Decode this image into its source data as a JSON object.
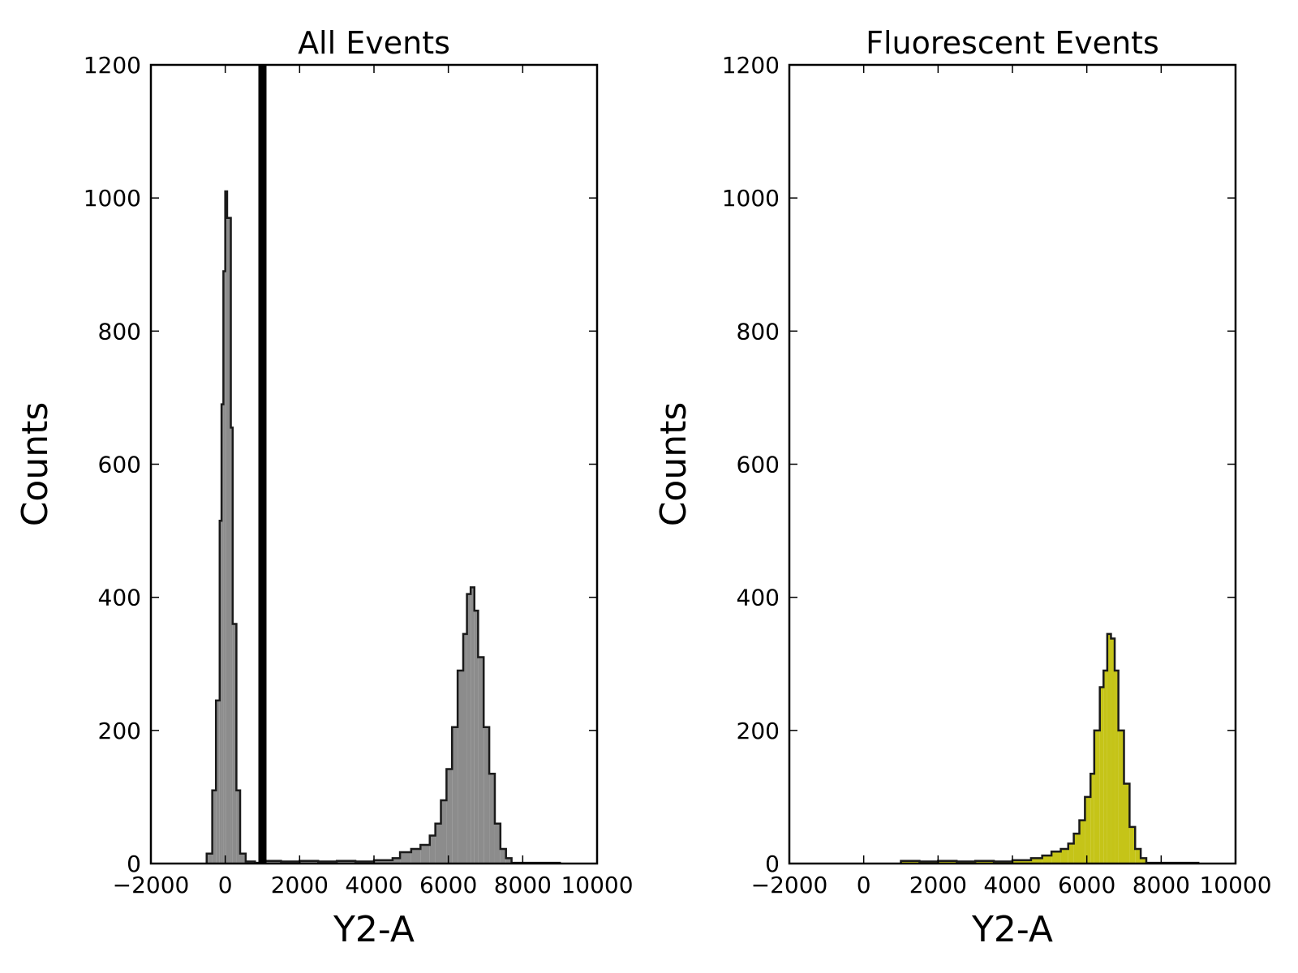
{
  "chart_data": [
    {
      "type": "histogram",
      "title": "All Events",
      "xlabel": "Y2-A",
      "ylabel": "Counts",
      "xlim": [
        -2000,
        10000
      ],
      "ylim": [
        0,
        1200
      ],
      "xticks": [
        -2000,
        0,
        2000,
        4000,
        6000,
        8000,
        10000
      ],
      "xtick_labels": [
        "−2000",
        "0",
        "2000",
        "4000",
        "6000",
        "8000",
        "10000"
      ],
      "yticks": [
        0,
        200,
        400,
        600,
        800,
        1000,
        1200
      ],
      "ytick_labels": [
        "0",
        "200",
        "400",
        "600",
        "800",
        "1000",
        "1200"
      ],
      "fill_color": "#8c8c8c",
      "edge_color": "#1a1a1a",
      "threshold_line": {
        "x": 1000,
        "color": "#000000"
      },
      "bins": [
        [
          -500,
          -350,
          15
        ],
        [
          -350,
          -250,
          110
        ],
        [
          -250,
          -150,
          245
        ],
        [
          -150,
          -100,
          515
        ],
        [
          -100,
          -50,
          690
        ],
        [
          -50,
          0,
          890
        ],
        [
          0,
          50,
          1010
        ],
        [
          50,
          150,
          970
        ],
        [
          150,
          200,
          655
        ],
        [
          200,
          300,
          360
        ],
        [
          300,
          400,
          110
        ],
        [
          400,
          550,
          15
        ],
        [
          550,
          800,
          3
        ],
        [
          800,
          1000,
          1
        ],
        [
          1000,
          1500,
          4
        ],
        [
          1500,
          2000,
          3
        ],
        [
          2000,
          2500,
          4
        ],
        [
          2500,
          3000,
          3
        ],
        [
          3000,
          3500,
          4
        ],
        [
          3500,
          4000,
          3
        ],
        [
          4000,
          4500,
          5
        ],
        [
          4500,
          4700,
          8
        ],
        [
          4700,
          5000,
          17
        ],
        [
          5000,
          5250,
          22
        ],
        [
          5250,
          5500,
          28
        ],
        [
          5500,
          5650,
          42
        ],
        [
          5650,
          5800,
          60
        ],
        [
          5800,
          5950,
          95
        ],
        [
          5950,
          6100,
          142
        ],
        [
          6100,
          6250,
          205
        ],
        [
          6250,
          6400,
          290
        ],
        [
          6400,
          6500,
          345
        ],
        [
          6500,
          6600,
          405
        ],
        [
          6600,
          6700,
          415
        ],
        [
          6700,
          6800,
          380
        ],
        [
          6800,
          6950,
          310
        ],
        [
          6950,
          7100,
          205
        ],
        [
          7100,
          7250,
          135
        ],
        [
          7250,
          7400,
          60
        ],
        [
          7400,
          7550,
          22
        ],
        [
          7550,
          7700,
          8
        ],
        [
          7700,
          9000,
          1
        ]
      ]
    },
    {
      "type": "histogram",
      "title": "Fluorescent Events",
      "xlabel": "Y2-A",
      "ylabel": "Counts",
      "xlim": [
        -2000,
        10000
      ],
      "ylim": [
        0,
        1200
      ],
      "xticks": [
        -2000,
        0,
        2000,
        4000,
        6000,
        8000,
        10000
      ],
      "xtick_labels": [
        "−2000",
        "0",
        "2000",
        "4000",
        "6000",
        "8000",
        "10000"
      ],
      "yticks": [
        0,
        200,
        400,
        600,
        800,
        1000,
        1200
      ],
      "ytick_labels": [
        "0",
        "200",
        "400",
        "600",
        "800",
        "1000",
        "1200"
      ],
      "fill_color": "#c5c418",
      "edge_color": "#1a1a1a",
      "bins": [
        [
          1000,
          1500,
          4
        ],
        [
          1500,
          2000,
          3
        ],
        [
          2000,
          2500,
          4
        ],
        [
          2500,
          3000,
          3
        ],
        [
          3000,
          3500,
          4
        ],
        [
          3500,
          4000,
          3
        ],
        [
          4000,
          4500,
          5
        ],
        [
          4500,
          4800,
          8
        ],
        [
          4800,
          5050,
          12
        ],
        [
          5050,
          5300,
          18
        ],
        [
          5300,
          5500,
          22
        ],
        [
          5500,
          5650,
          30
        ],
        [
          5650,
          5800,
          45
        ],
        [
          5800,
          5950,
          65
        ],
        [
          5950,
          6100,
          100
        ],
        [
          6100,
          6200,
          135
        ],
        [
          6200,
          6350,
          200
        ],
        [
          6350,
          6450,
          265
        ],
        [
          6450,
          6550,
          290
        ],
        [
          6550,
          6650,
          345
        ],
        [
          6650,
          6750,
          338
        ],
        [
          6750,
          6850,
          290
        ],
        [
          6850,
          7000,
          200
        ],
        [
          7000,
          7150,
          120
        ],
        [
          7150,
          7300,
          55
        ],
        [
          7300,
          7450,
          22
        ],
        [
          7450,
          7600,
          8
        ],
        [
          7600,
          9000,
          1
        ]
      ]
    }
  ]
}
